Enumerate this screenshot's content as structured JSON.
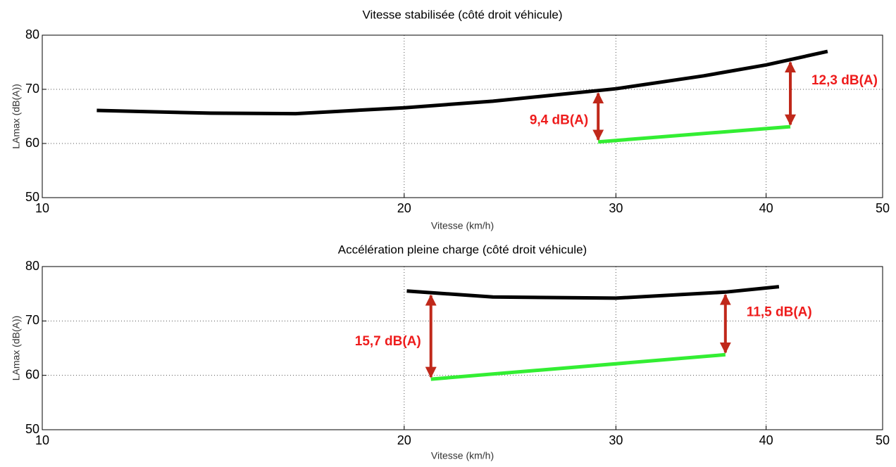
{
  "chart_data": [
    {
      "type": "line",
      "title": "Vitesse stabilisée (côté droit véhicule)",
      "xlabel": "Vitesse (km/h)",
      "ylabel": "LAmax (dB(A))",
      "xscale": "log",
      "xlim": [
        10,
        50
      ],
      "xticks": [
        10,
        20,
        30,
        40,
        50
      ],
      "ylim": [
        50,
        80
      ],
      "yticks": [
        50,
        60,
        70,
        80
      ],
      "grid": true,
      "series": [
        {
          "color": "#000000",
          "x": [
            11.1,
            13.8,
            16.25,
            20,
            23.7,
            30,
            35.5,
            40,
            45.0
          ],
          "values": [
            66.1,
            65.6,
            65.5,
            66.6,
            67.8,
            70.1,
            72.5,
            74.5,
            77.0
          ]
        },
        {
          "color": "#33ee33",
          "x": [
            29.0,
            41.9
          ],
          "values": [
            60.3,
            63.1
          ]
        }
      ],
      "annotations": [
        "9,4 dB(A)",
        "12,3 dB(A)"
      ]
    },
    {
      "type": "line",
      "title": "Accélération pleine charge (côté droit véhicule)",
      "xlabel": "Vitesse (km/h)",
      "ylabel": "LAmax (dB(A))",
      "xscale": "log",
      "xlim": [
        10,
        50
      ],
      "xticks": [
        10,
        20,
        30,
        40,
        50
      ],
      "ylim": [
        50,
        80
      ],
      "yticks": [
        50,
        60,
        70,
        80
      ],
      "grid": true,
      "series": [
        {
          "color": "#000000",
          "x": [
            20.1,
            23.7,
            30,
            37.0,
            41.0
          ],
          "values": [
            75.5,
            74.4,
            74.2,
            75.3,
            76.3
          ]
        },
        {
          "color": "#33ee33",
          "x": [
            21.05,
            37.0
          ],
          "values": [
            59.3,
            63.8
          ]
        }
      ],
      "annotations": [
        "15,7 dB(A)",
        "11,5 dB(A)"
      ]
    }
  ]
}
